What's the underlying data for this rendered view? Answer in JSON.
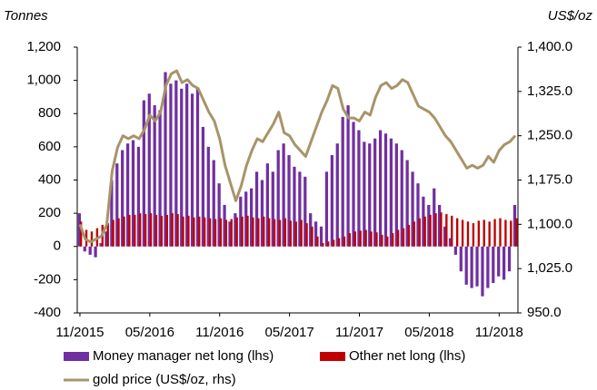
{
  "chart_data": {
    "type": "bar",
    "y_title": "Tonnes",
    "y2_title": "US$/oz",
    "categories": [
      "11/2015",
      null,
      null,
      null,
      null,
      null,
      null,
      null,
      null,
      null,
      null,
      null,
      null,
      "05/2016",
      null,
      null,
      null,
      null,
      null,
      null,
      null,
      null,
      null,
      null,
      null,
      null,
      "11/2016",
      null,
      null,
      null,
      null,
      null,
      null,
      null,
      null,
      null,
      null,
      null,
      null,
      "05/2017",
      null,
      null,
      null,
      null,
      null,
      null,
      null,
      null,
      null,
      null,
      null,
      null,
      "11/2017",
      null,
      null,
      null,
      null,
      null,
      null,
      null,
      null,
      null,
      null,
      null,
      null,
      "05/2018",
      null,
      null,
      null,
      null,
      null,
      null,
      null,
      null,
      null,
      null,
      null,
      null,
      "11/2018",
      null,
      null,
      null
    ],
    "series": [
      {
        "name": "Money manager net long (lhs)",
        "color": "#7030a0",
        "type": "bar",
        "values": [
          200,
          -30,
          -50,
          -65,
          20,
          90,
          400,
          500,
          580,
          620,
          640,
          600,
          880,
          920,
          850,
          820,
          1050,
          980,
          1000,
          950,
          980,
          920,
          950,
          720,
          600,
          520,
          380,
          250,
          150,
          200,
          300,
          330,
          350,
          450,
          400,
          500,
          450,
          580,
          620,
          550,
          480,
          450,
          420,
          200,
          150,
          120,
          450,
          550,
          620,
          780,
          850,
          750,
          700,
          630,
          620,
          650,
          700,
          680,
          650,
          620,
          580,
          520,
          450,
          380,
          300,
          250,
          350,
          250,
          120,
          50,
          -50,
          -150,
          -230,
          -250,
          -240,
          -300,
          -250,
          -220,
          -180,
          -200,
          -150,
          250
        ]
      },
      {
        "name": "Other net long (lhs)",
        "color": "#c00000",
        "type": "bar",
        "values": [
          150,
          100,
          90,
          110,
          130,
          140,
          160,
          170,
          180,
          190,
          190,
          200,
          195,
          200,
          190,
          185,
          190,
          200,
          195,
          180,
          185,
          175,
          180,
          175,
          170,
          165,
          170,
          160,
          165,
          175,
          180,
          185,
          175,
          170,
          180,
          170,
          165,
          160,
          170,
          155,
          150,
          160,
          140,
          120,
          60,
          20,
          30,
          40,
          50,
          60,
          80,
          90,
          95,
          100,
          90,
          85,
          70,
          60,
          80,
          100,
          110,
          130,
          150,
          170,
          180,
          190,
          200,
          205,
          195,
          185,
          170,
          160,
          150,
          140,
          155,
          160,
          150,
          165,
          170,
          160,
          155,
          170
        ]
      },
      {
        "name": "gold price (US$/oz, rhs)",
        "color": "#a8946a",
        "type": "line",
        "axis": "y2",
        "values": [
          1100,
          1075,
          1070,
          1075,
          1080,
          1100,
          1190,
          1230,
          1250,
          1245,
          1250,
          1245,
          1260,
          1285,
          1275,
          1290,
          1335,
          1355,
          1360,
          1340,
          1345,
          1335,
          1330,
          1310,
          1290,
          1275,
          1245,
          1200,
          1170,
          1140,
          1165,
          1200,
          1225,
          1245,
          1240,
          1255,
          1270,
          1290,
          1255,
          1250,
          1235,
          1225,
          1215,
          1240,
          1265,
          1290,
          1310,
          1335,
          1330,
          1295,
          1280,
          1280,
          1275,
          1290,
          1285,
          1315,
          1335,
          1340,
          1330,
          1335,
          1345,
          1340,
          1320,
          1300,
          1295,
          1290,
          1280,
          1265,
          1250,
          1240,
          1225,
          1210,
          1195,
          1200,
          1195,
          1200,
          1215,
          1205,
          1225,
          1235,
          1240,
          1250
        ]
      }
    ],
    "ylim": [
      -400,
      1200
    ],
    "yticks": [
      -400,
      -200,
      0,
      200,
      400,
      600,
      800,
      {
        "value": 1000,
        "label": "1,000"
      },
      {
        "value": 1200,
        "label": "1,200"
      }
    ],
    "y2lim": [
      950,
      1400
    ],
    "y2ticks": [
      {
        "value": 950,
        "label": "950.0"
      },
      {
        "value": 1025,
        "label": "1,025.0"
      },
      {
        "value": 1100,
        "label": "1,100.0"
      },
      {
        "value": 1175,
        "label": "1,175.0"
      },
      {
        "value": 1250,
        "label": "1,250.0"
      },
      {
        "value": 1325,
        "label": "1,325.0"
      },
      {
        "value": 1400,
        "label": "1,400.0"
      }
    ],
    "grid": false,
    "legend": "bottom"
  }
}
